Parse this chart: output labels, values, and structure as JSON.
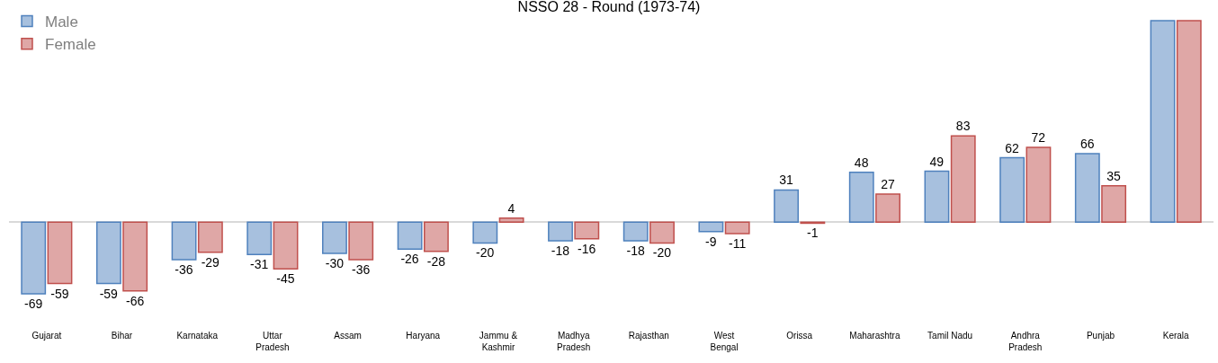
{
  "chart_data": {
    "type": "bar",
    "title": "NSSO 28 - Round (1973-74)",
    "categories": [
      "Gujarat",
      "Bihar",
      "Karnataka",
      "Uttar Pradesh",
      "Assam",
      "Haryana",
      "Jammu & Kashmir",
      "Madhya Pradesh",
      "Rajasthan",
      "West Bengal",
      "Orissa",
      "Maharashtra",
      "Tamil Nadu",
      "Andhra Pradesh",
      "Punjab",
      "Kerala"
    ],
    "series": [
      {
        "name": "Male",
        "color": "#4f81bd",
        "values": [
          -69,
          -59,
          -36,
          -31,
          -30,
          -26,
          -20,
          -18,
          -18,
          -9,
          31,
          48,
          49,
          62,
          66,
          194
        ],
        "value_labels": [
          "-69",
          "-59",
          "-36",
          "-31",
          "-30",
          "-26",
          "-20",
          "-18",
          "-18",
          "-9",
          "31",
          "48",
          "49",
          "62",
          "66",
          null
        ]
      },
      {
        "name": "Female",
        "color": "#c0504d",
        "values": [
          -59,
          -66,
          -29,
          -45,
          -36,
          -28,
          4,
          -16,
          -20,
          -11,
          -1,
          27,
          83,
          72,
          35,
          194
        ],
        "value_labels": [
          "-59",
          "-66",
          "-29",
          "-45",
          "-36",
          "-28",
          "4",
          "-16",
          "-20",
          "-11",
          "-1",
          "27",
          "83",
          "72",
          "35",
          null
        ]
      }
    ],
    "legend": "top left"
  }
}
